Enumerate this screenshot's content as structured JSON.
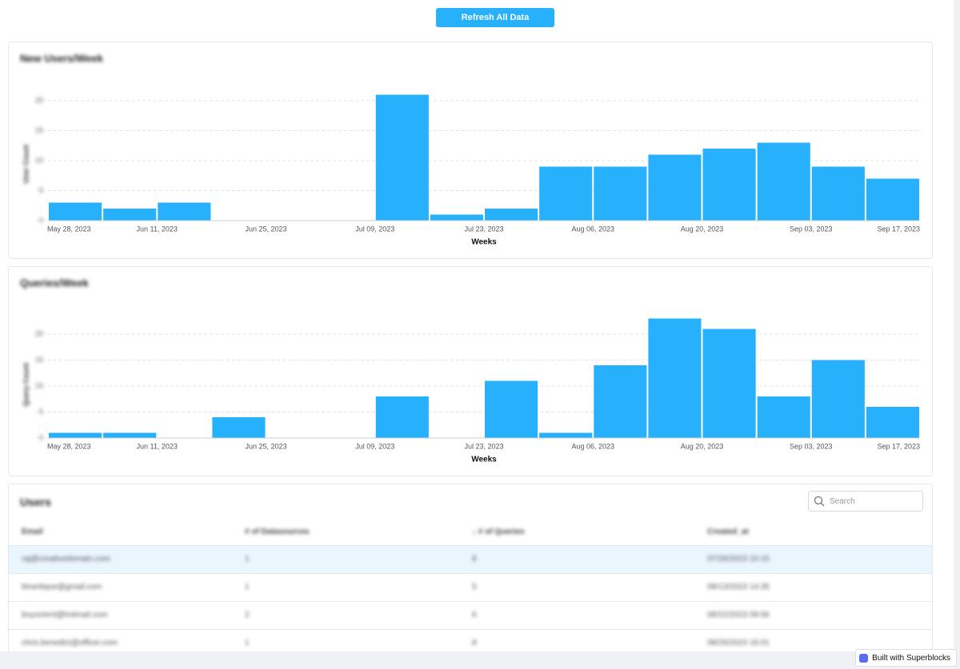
{
  "button": "Refresh All Data",
  "chart_data": [
    {
      "type": "histogram",
      "title": "New Users/Week",
      "y_label": "User Count",
      "x_label": "Weeks",
      "bins": [
        "May 28, 2023",
        null,
        "Jun 11, 2023",
        null,
        "Jun 25, 2023",
        null,
        "Jul 09, 2023",
        null,
        "Jul 23, 2023",
        null,
        "Aug 06, 2023",
        null,
        "Aug 20, 2023",
        null,
        "Sep 03, 2023",
        null,
        "Sep 17, 2023"
      ],
      "counts": [
        3,
        2,
        3,
        0,
        0,
        0,
        21,
        1,
        2,
        9,
        9,
        11,
        12,
        13,
        9,
        7
      ],
      "color": "#27b0fb",
      "ylim": [
        0,
        21
      ],
      "yticks": [
        0,
        5,
        10,
        15,
        20
      ],
      "grid": true
    },
    {
      "type": "histogram",
      "title": "Queries/Week",
      "y_label": "Query Count",
      "x_label": "Weeks",
      "bins": [
        "May 28, 2023",
        null,
        "Jun 11, 2023",
        null,
        "Jun 25, 2023",
        null,
        "Jul 09, 2023",
        null,
        "Jul 23, 2023",
        null,
        "Aug 06, 2023",
        null,
        "Aug 20, 2023",
        null,
        "Sep 03, 2023",
        null,
        "Sep 17, 2023"
      ],
      "counts": [
        1,
        1,
        0,
        4,
        0,
        0,
        8,
        0,
        11,
        1,
        14,
        23,
        21,
        8,
        15,
        6
      ],
      "color": "#27b0fb",
      "ylim": [
        0,
        23
      ],
      "yticks": [
        0,
        5,
        10,
        15,
        20
      ],
      "grid": true
    }
  ],
  "table": {
    "title": "Users",
    "search_placeholder": "Search",
    "columns": [
      "Email",
      "# of Datasources",
      "↓ # of Queries",
      "Created_at"
    ],
    "rows": [
      [
        "raj@creativedomain.com",
        1,
        8,
        "07/26/2023 10:15"
      ],
      [
        "btrantique@gmail.com",
        1,
        5,
        "08/13/2023 14:35"
      ],
      [
        "boyoctent@hotmail.com",
        2,
        6,
        "08/22/2023 09:56"
      ],
      [
        "chris.benedict@officer.com",
        1,
        8,
        "08/26/2023 16:01"
      ]
    ]
  },
  "badge": "Built with Superblocks"
}
